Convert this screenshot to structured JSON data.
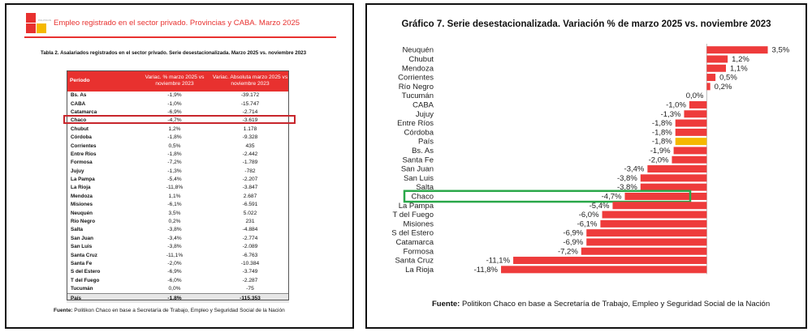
{
  "left": {
    "brand": "POLITIKON",
    "title": "Empleo registrado en el sector privado. Provincias y CABA. Marzo 2025",
    "table_caption": "Tabla 2. Asalariados registrados en el sector privado. Serie desestacionalizada. Marzo 2025 vs. noviembre 2023",
    "headers": [
      "Período",
      "Variac. % marzo 2025 vs noviembre 2023",
      "Variac. Absoluta marzo 2025 vs noviembre 2023"
    ],
    "rows": [
      {
        "name": "Bs. As",
        "pct": "-1,9%",
        "abs": "-39.172"
      },
      {
        "name": "CABA",
        "pct": "-1,0%",
        "abs": "-15.747"
      },
      {
        "name": "Catamarca",
        "pct": "-6,9%",
        "abs": "-2.714"
      },
      {
        "name": "Chaco",
        "pct": "-4,7%",
        "abs": "-3.619"
      },
      {
        "name": "Chubut",
        "pct": "1,2%",
        "abs": "1.178"
      },
      {
        "name": "Córdoba",
        "pct": "-1,8%",
        "abs": "-9.328"
      },
      {
        "name": "Corrientes",
        "pct": "0,5%",
        "abs": "435"
      },
      {
        "name": "Entre Ríos",
        "pct": "-1,8%",
        "abs": "-2.442"
      },
      {
        "name": "Formosa",
        "pct": "-7,2%",
        "abs": "-1.789"
      },
      {
        "name": "Jujuy",
        "pct": "-1,3%",
        "abs": "-782"
      },
      {
        "name": "La Pampa",
        "pct": "-5,4%",
        "abs": "-2.207"
      },
      {
        "name": "La Rioja",
        "pct": "-11,8%",
        "abs": "-3.847"
      },
      {
        "name": "Mendoza",
        "pct": "1,1%",
        "abs": "2.687"
      },
      {
        "name": "Misiones",
        "pct": "-6,1%",
        "abs": "-6.591"
      },
      {
        "name": "Neuquén",
        "pct": "3,5%",
        "abs": "5.022"
      },
      {
        "name": "Río Negro",
        "pct": "0,2%",
        "abs": "231"
      },
      {
        "name": "Salta",
        "pct": "-3,8%",
        "abs": "-4.884"
      },
      {
        "name": "San Juan",
        "pct": "-3,4%",
        "abs": "-2.774"
      },
      {
        "name": "San Luis",
        "pct": "-3,8%",
        "abs": "-2.089"
      },
      {
        "name": "Santa Cruz",
        "pct": "-11,1%",
        "abs": "-6.763"
      },
      {
        "name": "Santa Fe",
        "pct": "-2,0%",
        "abs": "-10.384"
      },
      {
        "name": "S del Estero",
        "pct": "-6,9%",
        "abs": "-3.749"
      },
      {
        "name": "T del Fuego",
        "pct": "-6,0%",
        "abs": "-2.287"
      },
      {
        "name": "Tucumán",
        "pct": "0,0%",
        "abs": "-75"
      }
    ],
    "total": {
      "name": "País",
      "pct": "-1,8%",
      "abs": "-115.353"
    },
    "highlight_row": "Chaco",
    "highlight_color": "#c8262c",
    "source_label": "Fuente:",
    "source_text": " Politikon Chaco en base a Secretaría de Trabajo, Empleo y Seguridad Social de la Nación"
  },
  "chart_data": {
    "type": "bar",
    "orientation": "horizontal",
    "title": "Gráfico 7. Serie desestacionalizada. Variación % de marzo 2025 vs. noviembre 2023",
    "categories": [
      "Neuquén",
      "Chubut",
      "Mendoza",
      "Corrientes",
      "Río Negro",
      "Tucumán",
      "CABA",
      "Jujuy",
      "Entre Ríos",
      "Córdoba",
      "País",
      "Bs. As",
      "Santa Fe",
      "San Juan",
      "San Luis",
      "Salta",
      "Chaco",
      "La Pampa",
      "T del Fuego",
      "Misiones",
      "S del Estero",
      "Catamarca",
      "Formosa",
      "Santa Cruz",
      "La Rioja"
    ],
    "values": [
      3.5,
      1.2,
      1.1,
      0.5,
      0.2,
      0.0,
      -1.0,
      -1.3,
      -1.8,
      -1.8,
      -1.8,
      -1.9,
      -2.0,
      -3.4,
      -3.8,
      -3.8,
      -4.7,
      -5.4,
      -6.0,
      -6.1,
      -6.9,
      -6.9,
      -7.2,
      -11.1,
      -11.8
    ],
    "value_labels": [
      "3,5%",
      "1,2%",
      "1,1%",
      "0,5%",
      "0,2%",
      "0,0%",
      "-1,0%",
      "-1,3%",
      "-1,8%",
      "-1,8%",
      "-1,8%",
      "-1,9%",
      "-2,0%",
      "-3,4%",
      "-3,8%",
      "-3,8%",
      "-4,7%",
      "-5,4%",
      "-6,0%",
      "-6,1%",
      "-6,9%",
      "-6,9%",
      "-7,2%",
      "-11,1%",
      "-11,8%"
    ],
    "bar_color": "#ee3b3b",
    "highlight_bar": "País",
    "highlight_bar_color": "#f5b800",
    "highlight_box": "Chaco",
    "highlight_box_color": "#2aa84a",
    "xlim": [
      -12.5,
      4.5
    ],
    "grid": false,
    "xlabel": "",
    "ylabel": "",
    "source_label": "Fuente:",
    "source_text": " Politikon Chaco en base a Secretaría de Trabajo, Empleo y Seguridad Social de la Nación"
  }
}
